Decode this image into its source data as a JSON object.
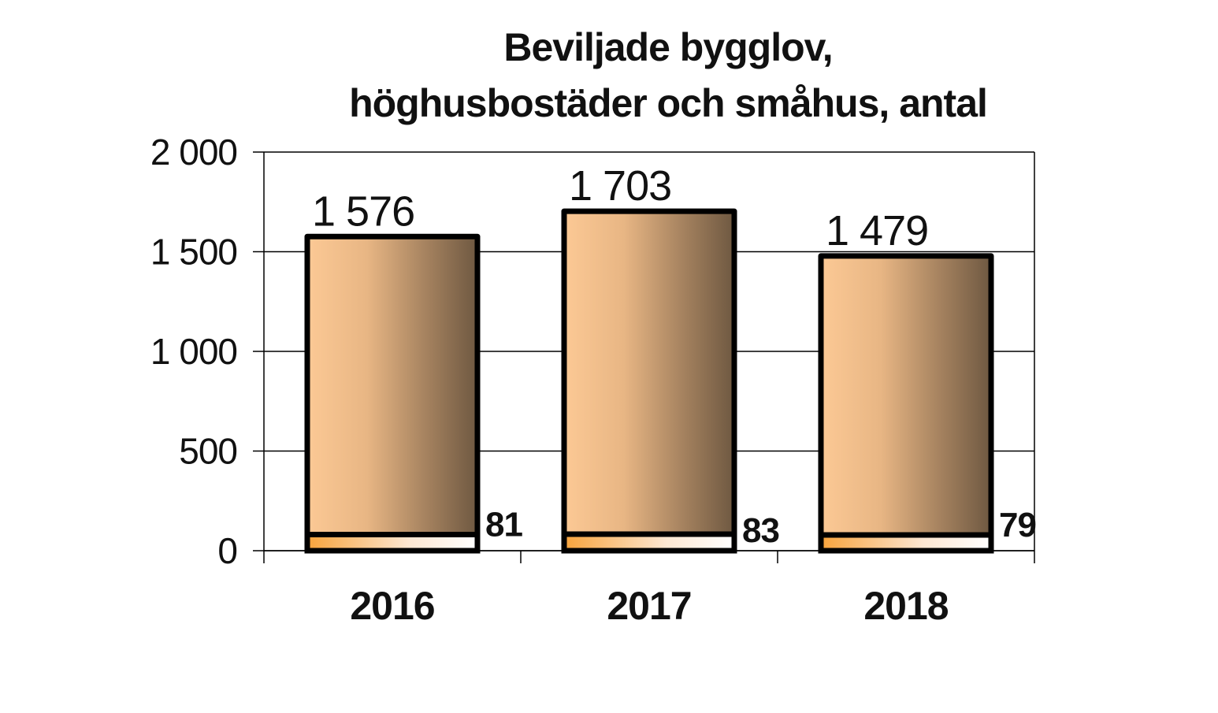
{
  "chart_data": {
    "type": "bar",
    "title_lines": [
      "Beviljade bygglov,",
      "höghusbostäder och småhus, antal"
    ],
    "categories": [
      "2016",
      "2017",
      "2018"
    ],
    "series": [
      {
        "values": [
          1576,
          1703,
          1479
        ],
        "labels": [
          "1 576",
          "1 703",
          "1 479"
        ],
        "colors": [
          "#fcc995",
          "#6e5841"
        ]
      },
      {
        "values": [
          81,
          83,
          79
        ],
        "labels": [
          "81",
          "83",
          "79"
        ],
        "colors": [
          "#f7a33c",
          "#ffffff"
        ]
      }
    ],
    "stacked": false,
    "overlapping": true,
    "yticks": [
      0,
      500,
      1000,
      1500,
      2000
    ],
    "ytick_labels": [
      "0",
      "500",
      "1 000",
      "1 500",
      "2 000"
    ],
    "ylim": [
      0,
      2000
    ],
    "grid": true,
    "legend": "none"
  }
}
